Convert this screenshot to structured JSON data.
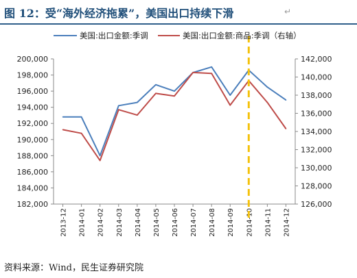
{
  "header": {
    "title": "图 12：受“海外经济拖累”，美国出口持续下滑",
    "mark": "↵"
  },
  "footer": {
    "source": "资料来源：Wind，民生证券研究院"
  },
  "chart_data": {
    "type": "line",
    "title": "",
    "categories": [
      "2013-12",
      "2014-01",
      "2014-02",
      "2014-03",
      "2014-04",
      "2014-05",
      "2014-06",
      "2014-07",
      "2014-08",
      "2014-09",
      "2014-10",
      "2014-11",
      "2014-12"
    ],
    "series": [
      {
        "name": "美国:出口金额:季调",
        "axis": "left",
        "color": "#4a7ebb",
        "values": [
          192800,
          192800,
          188000,
          194200,
          194600,
          196800,
          196000,
          198300,
          199000,
          195500,
          198600,
          196500,
          194900
        ]
      },
      {
        "name": "美国:出口金额:商品:季调（右轴）",
        "axis": "right",
        "color": "#be4b48",
        "values": [
          134200,
          133800,
          130800,
          136400,
          135800,
          138200,
          137900,
          140500,
          140400,
          136900,
          139600,
          137200,
          134300
        ]
      }
    ],
    "y_left": {
      "min": 182000,
      "max": 200000,
      "step": 2000,
      "ticks": [
        "182,000",
        "184,000",
        "186,000",
        "188,000",
        "190,000",
        "192,000",
        "194,000",
        "196,000",
        "198,000",
        "200,000"
      ]
    },
    "y_right": {
      "min": 126000,
      "max": 142000,
      "step": 2000,
      "ticks": [
        "126,000",
        "128,000",
        "130,000",
        "132,000",
        "134,000",
        "136,000",
        "138,000",
        "140,000",
        "142,000"
      ]
    },
    "marker": {
      "category": "2014-10",
      "style": "dashed",
      "color": "#f4c20d"
    },
    "grid": false,
    "legend_position": "top"
  }
}
